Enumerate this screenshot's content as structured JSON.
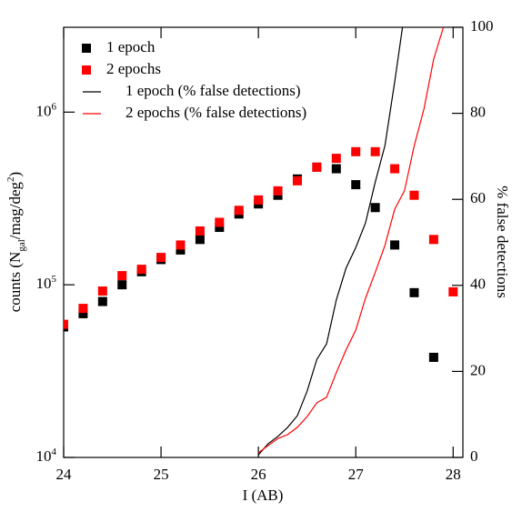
{
  "chart_data": {
    "type": "scatter",
    "xlabel": "I (AB)",
    "ylabel_parts": [
      {
        "text": "counts (N"
      },
      {
        "text": "gal",
        "style": "sub"
      },
      {
        "text": "/mag/deg"
      },
      {
        "text": "2",
        "style": "sup"
      },
      {
        "text": ")"
      }
    ],
    "y2label": "% false detections",
    "xlim": [
      24,
      28.1
    ],
    "xticks": [
      24,
      25,
      26,
      27,
      28
    ],
    "ylim": [
      10000,
      3100000
    ],
    "ylog": true,
    "yticks": [
      {
        "value": 10000,
        "label": "10",
        "exponent": "4"
      },
      {
        "value": 100000,
        "label": "10",
        "exponent": "5"
      },
      {
        "value": 1000000,
        "label": "10",
        "exponent": "6"
      }
    ],
    "y2lim": [
      0,
      100
    ],
    "y2ticks": [
      0,
      20,
      40,
      60,
      80,
      100
    ],
    "legend": "top-left",
    "series": [
      {
        "name": "1 epoch",
        "color": "#000000",
        "mark": "square",
        "x": [
          24,
          24.2,
          24.4,
          24.6,
          24.8,
          25,
          25.2,
          25.4,
          25.6,
          25.8,
          26,
          26.2,
          26.4,
          26.6,
          26.8,
          27,
          27.2,
          27.4,
          27.6,
          27.8
        ],
        "values": [
          57000,
          68000,
          80000,
          100000,
          119000,
          140000,
          159000,
          183000,
          215000,
          257000,
          294000,
          330000,
          410000,
          480000,
          470000,
          380000,
          280000,
          170000,
          90000,
          38000
        ]
      },
      {
        "name": "2 epochs",
        "color": "#ff0000",
        "mark": "square",
        "x": [
          24,
          24.2,
          24.4,
          24.6,
          24.8,
          25,
          25.2,
          25.4,
          25.6,
          25.8,
          26,
          26.2,
          26.4,
          26.6,
          26.8,
          27,
          27.2,
          27.4,
          27.6,
          27.8,
          28
        ],
        "values": [
          59000,
          73000,
          92000,
          113000,
          123000,
          144000,
          170000,
          205000,
          230000,
          270000,
          310000,
          350000,
          400000,
          480000,
          540000,
          590000,
          590000,
          470000,
          330000,
          183000,
          91000
        ]
      },
      {
        "name": "1 epoch (% false detections)",
        "color": "#000000",
        "mark": "line",
        "axis": "y2",
        "x": [
          26,
          26.1,
          26.2,
          26.3,
          26.4,
          26.5,
          26.6,
          26.7,
          26.8,
          26.9,
          27,
          27.1,
          27.2,
          27.3,
          27.4,
          27.48
        ],
        "values": [
          0.6,
          3.2,
          4.9,
          7,
          9.7,
          15.4,
          22.8,
          26.4,
          36.6,
          44,
          48.8,
          54.5,
          64,
          72.5,
          87.3,
          100
        ]
      },
      {
        "name": "2 epochs (% false detections)",
        "color": "#ff0000",
        "mark": "line",
        "axis": "y2",
        "x": [
          26,
          26.2,
          26.3,
          26.4,
          26.5,
          26.6,
          26.7,
          26.8,
          26.9,
          27,
          27.1,
          27.2,
          27.3,
          27.4,
          27.5,
          27.6,
          27.7,
          27.8,
          27.9
        ],
        "values": [
          1.1,
          4.4,
          5.3,
          7,
          9.5,
          12.7,
          14,
          19.7,
          25,
          29.6,
          37,
          43,
          49.3,
          57.7,
          62,
          72.5,
          81,
          92.6,
          100
        ]
      }
    ]
  }
}
